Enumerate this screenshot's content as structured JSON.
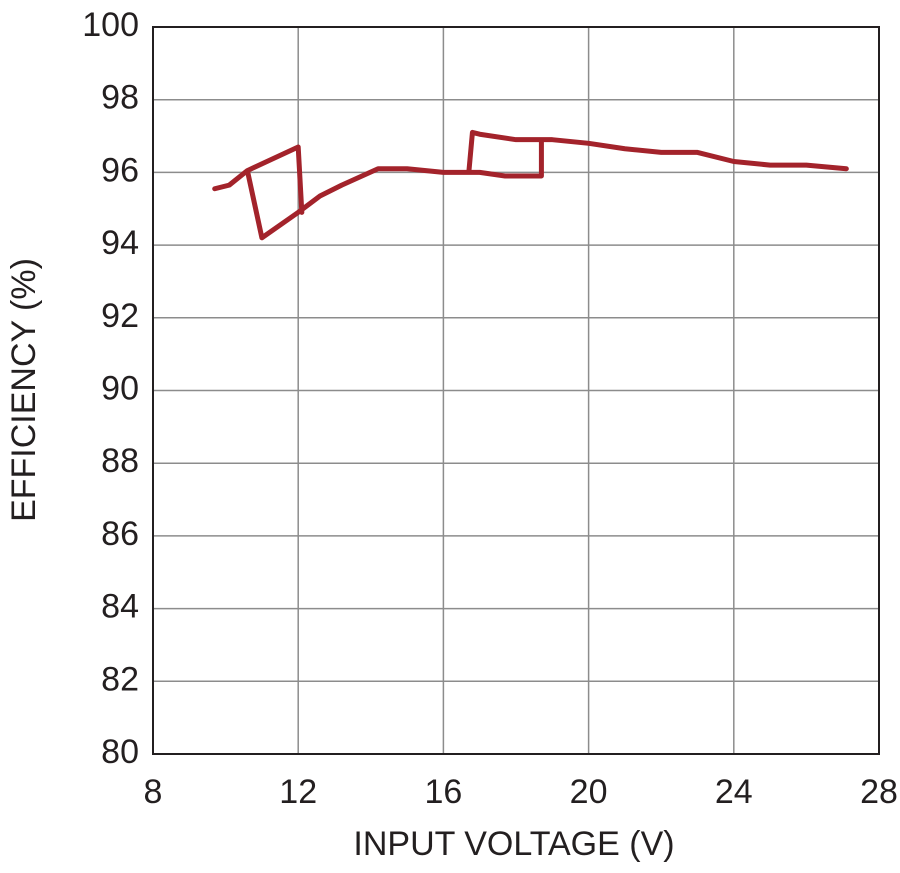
{
  "chart_data": {
    "type": "line",
    "x_label": "INPUT VOLTAGE (V)",
    "y_label": "EFFICIENCY (%)",
    "xlim": [
      8,
      28
    ],
    "xticks": [
      8,
      12,
      16,
      20,
      24,
      28
    ],
    "ylim": [
      80,
      100
    ],
    "yticks": [
      80,
      82,
      84,
      86,
      88,
      90,
      92,
      94,
      96,
      98,
      100
    ],
    "grid": true,
    "series": [
      {
        "color": "#a3232b",
        "x": [
          9.7,
          10.1,
          10.6,
          11.0,
          12.0,
          12.6,
          13.2,
          14.2,
          15.0,
          16.0,
          17.0,
          17.7,
          18.7,
          18.7,
          19.0,
          20.0,
          21.0,
          22.0,
          23.0,
          24.0,
          25.0,
          26.0,
          27.1,
          null,
          10.6,
          12.0,
          12.1,
          null,
          16.7,
          16.8,
          17.0,
          18.0,
          18.7
        ],
        "values": [
          95.55,
          95.65,
          96.05,
          94.2,
          94.9,
          95.35,
          95.65,
          96.1,
          96.1,
          96.0,
          96.0,
          95.9,
          95.9,
          96.9,
          96.9,
          96.8,
          96.65,
          96.55,
          96.55,
          96.3,
          96.2,
          96.2,
          96.1,
          null,
          96.05,
          96.7,
          94.9,
          null,
          96.0,
          97.1,
          97.05,
          96.9,
          96.9
        ]
      }
    ]
  }
}
